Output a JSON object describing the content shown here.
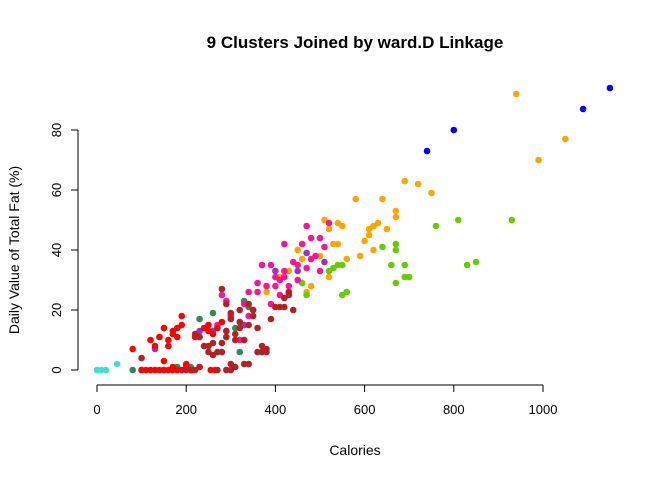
{
  "chart_data": {
    "type": "scatter",
    "title": "9  Clusters Joined by ward.D Linkage",
    "xlabel": "Calories",
    "ylabel": "Daily Value of Total Fat (%)",
    "xlim": [
      -10,
      1160
    ],
    "ylim": [
      0,
      95
    ],
    "xticks": [
      0,
      200,
      400,
      600,
      800,
      1000
    ],
    "yticks": [
      0,
      20,
      40,
      60,
      80
    ],
    "grid": false,
    "legend": "none",
    "series": [
      {
        "color": "#40E0D0",
        "points": [
          [
            0,
            0
          ],
          [
            10,
            0
          ],
          [
            20,
            0
          ],
          [
            45,
            2
          ],
          [
            140,
            11
          ]
        ]
      },
      {
        "color": "#0000FF",
        "points": [
          [
            740,
            73
          ],
          [
            800,
            80
          ],
          [
            1090,
            87
          ],
          [
            1150,
            94
          ]
        ]
      },
      {
        "color": "#FFA500",
        "points": [
          [
            380,
            26
          ],
          [
            410,
            31
          ],
          [
            430,
            33
          ],
          [
            450,
            40
          ],
          [
            460,
            37
          ],
          [
            470,
            26
          ],
          [
            480,
            28
          ],
          [
            500,
            38
          ],
          [
            510,
            50
          ],
          [
            520,
            31
          ],
          [
            520,
            47
          ],
          [
            530,
            42
          ],
          [
            540,
            42
          ],
          [
            540,
            49
          ],
          [
            550,
            48
          ],
          [
            560,
            37
          ],
          [
            580,
            57
          ],
          [
            590,
            38
          ],
          [
            600,
            43
          ],
          [
            610,
            45
          ],
          [
            610,
            47
          ],
          [
            620,
            48
          ],
          [
            620,
            40
          ],
          [
            630,
            49
          ],
          [
            640,
            57
          ],
          [
            650,
            47
          ],
          [
            670,
            53
          ],
          [
            670,
            51
          ],
          [
            690,
            63
          ],
          [
            720,
            62
          ],
          [
            750,
            59
          ],
          [
            940,
            92
          ],
          [
            990,
            70
          ],
          [
            1050,
            77
          ]
        ]
      },
      {
        "color": "#66CC00",
        "points": [
          [
            430,
            26
          ],
          [
            460,
            29
          ],
          [
            470,
            25
          ],
          [
            520,
            33
          ],
          [
            530,
            34
          ],
          [
            540,
            35
          ],
          [
            550,
            35
          ],
          [
            550,
            25
          ],
          [
            560,
            26
          ],
          [
            640,
            41
          ],
          [
            660,
            35
          ],
          [
            670,
            29
          ],
          [
            670,
            42
          ],
          [
            670,
            40
          ],
          [
            690,
            31
          ],
          [
            690,
            35
          ],
          [
            700,
            31
          ],
          [
            760,
            48
          ],
          [
            810,
            50
          ],
          [
            830,
            35
          ],
          [
            850,
            36
          ],
          [
            930,
            50
          ]
        ]
      },
      {
        "color": "#2E8B57",
        "points": [
          [
            80,
            0
          ],
          [
            100,
            0
          ],
          [
            180,
            1
          ],
          [
            210,
            1
          ],
          [
            230,
            17
          ],
          [
            260,
            19
          ],
          [
            300,
            18
          ],
          [
            310,
            14
          ],
          [
            320,
            6
          ],
          [
            330,
            23
          ],
          [
            340,
            2
          ],
          [
            340,
            21
          ]
        ]
      },
      {
        "color": "#FF1493",
        "points": [
          [
            270,
            15
          ],
          [
            280,
            25
          ],
          [
            290,
            23
          ],
          [
            300,
            18
          ],
          [
            320,
            10
          ],
          [
            330,
            22
          ],
          [
            340,
            18
          ],
          [
            350,
            20
          ],
          [
            360,
            29
          ],
          [
            370,
            35
          ],
          [
            380,
            28
          ],
          [
            390,
            35
          ],
          [
            400,
            31
          ],
          [
            410,
            30
          ],
          [
            410,
            25
          ],
          [
            420,
            42
          ],
          [
            420,
            33
          ],
          [
            430,
            28
          ],
          [
            440,
            36
          ],
          [
            450,
            30
          ],
          [
            450,
            35
          ],
          [
            460,
            42
          ],
          [
            470,
            34
          ],
          [
            480,
            37
          ],
          [
            480,
            44
          ],
          [
            490,
            38
          ],
          [
            500,
            33
          ],
          [
            500,
            44
          ],
          [
            510,
            41
          ],
          [
            520,
            49
          ],
          [
            340,
            26
          ],
          [
            360,
            26
          ],
          [
            390,
            22
          ],
          [
            400,
            28
          ],
          [
            420,
            31
          ],
          [
            470,
            48
          ],
          [
            290,
            11
          ]
        ]
      },
      {
        "color": "#9932CC",
        "points": [
          [
            130,
            7
          ],
          [
            230,
            13
          ],
          [
            260,
            13
          ],
          [
            290,
            13
          ],
          [
            330,
            15
          ],
          [
            400,
            33
          ],
          [
            450,
            33
          ],
          [
            470,
            39
          ],
          [
            510,
            36
          ]
        ]
      },
      {
        "color": "#FF0000",
        "points": [
          [
            80,
            7
          ],
          [
            100,
            0
          ],
          [
            110,
            0
          ],
          [
            120,
            10
          ],
          [
            130,
            8
          ],
          [
            140,
            0
          ],
          [
            150,
            0
          ],
          [
            150,
            14
          ],
          [
            160,
            8
          ],
          [
            160,
            10
          ],
          [
            170,
            12
          ],
          [
            170,
            13
          ],
          [
            180,
            11
          ],
          [
            180,
            14
          ],
          [
            190,
            15
          ],
          [
            190,
            0
          ],
          [
            200,
            2
          ],
          [
            200,
            1
          ],
          [
            210,
            0
          ],
          [
            220,
            11
          ],
          [
            230,
            1
          ],
          [
            240,
            14
          ],
          [
            250,
            15
          ],
          [
            250,
            13
          ],
          [
            260,
            12
          ],
          [
            270,
            14
          ],
          [
            280,
            16
          ],
          [
            160,
            0
          ],
          [
            170,
            1
          ],
          [
            170,
            0
          ],
          [
            180,
            0
          ],
          [
            190,
            18
          ],
          [
            140,
            11
          ],
          [
            150,
            3
          ],
          [
            120,
            0
          ],
          [
            130,
            0
          ],
          [
            210,
            0
          ],
          [
            215,
            0
          ],
          [
            255,
            0
          ],
          [
            265,
            0
          ]
        ]
      },
      {
        "color": "#B22222",
        "points": [
          [
            100,
            4
          ],
          [
            200,
            0
          ],
          [
            220,
            12
          ],
          [
            230,
            11
          ],
          [
            240,
            8
          ],
          [
            250,
            8
          ],
          [
            260,
            5
          ],
          [
            270,
            6
          ],
          [
            280,
            9
          ],
          [
            280,
            27
          ],
          [
            290,
            13
          ],
          [
            290,
            11
          ],
          [
            290,
            22
          ],
          [
            300,
            19
          ],
          [
            310,
            12
          ],
          [
            310,
            10
          ],
          [
            320,
            14
          ],
          [
            320,
            20
          ],
          [
            330,
            2
          ],
          [
            330,
            10
          ],
          [
            340,
            15
          ],
          [
            340,
            22
          ],
          [
            350,
            18
          ],
          [
            360,
            6
          ],
          [
            370,
            8
          ],
          [
            370,
            6
          ],
          [
            380,
            7
          ],
          [
            380,
            6
          ],
          [
            390,
            17
          ],
          [
            400,
            21
          ],
          [
            410,
            21
          ],
          [
            420,
            24
          ],
          [
            430,
            25
          ],
          [
            430,
            26
          ],
          [
            440,
            20
          ],
          [
            420,
            21
          ],
          [
            230,
            1
          ],
          [
            220,
            0
          ],
          [
            250,
            6
          ],
          [
            260,
            9
          ],
          [
            270,
            0
          ],
          [
            290,
            0
          ],
          [
            300,
            0
          ],
          [
            310,
            1
          ],
          [
            330,
            10
          ],
          [
            340,
            2
          ],
          [
            350,
            20
          ],
          [
            360,
            14
          ],
          [
            300,
            2
          ],
          [
            280,
            6
          ],
          [
            320,
            16
          ],
          [
            300,
            17
          ]
        ]
      }
    ]
  }
}
